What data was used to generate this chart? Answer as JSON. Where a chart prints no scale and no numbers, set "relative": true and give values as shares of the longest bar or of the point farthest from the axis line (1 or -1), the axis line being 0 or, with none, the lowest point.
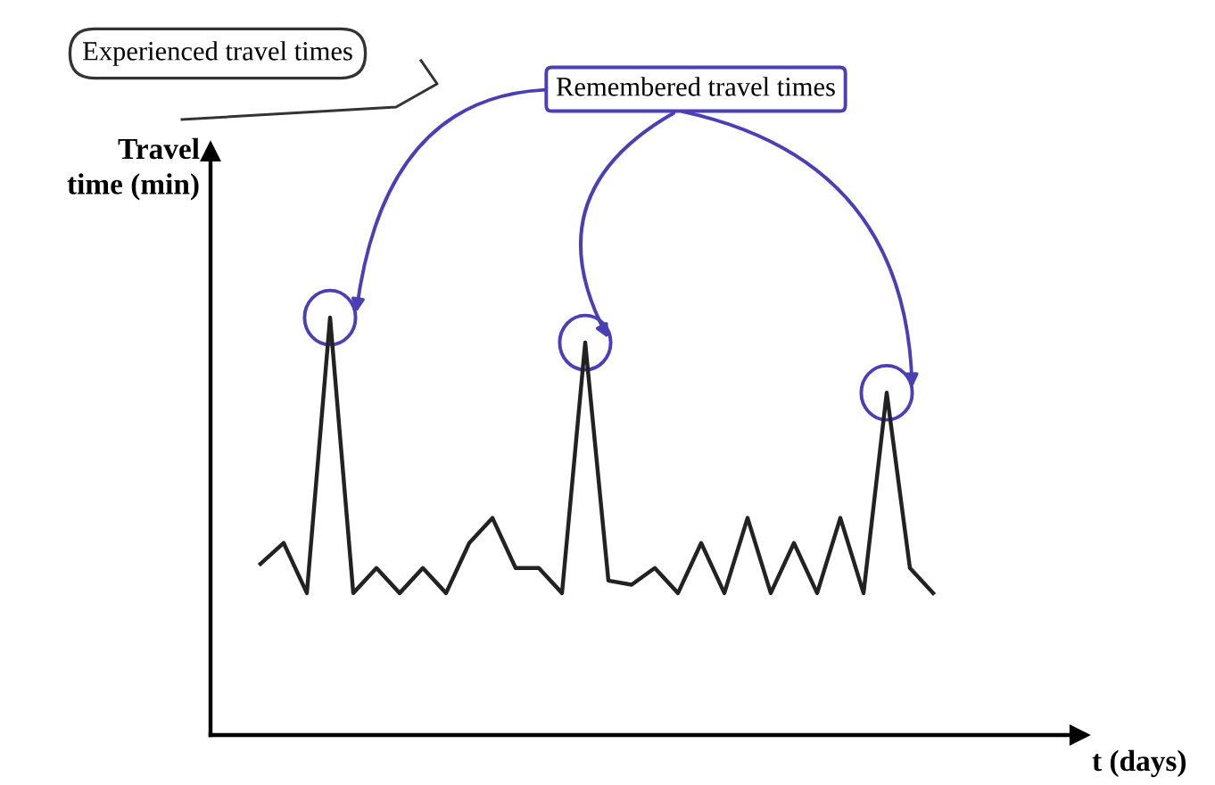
{
  "chart_data": {
    "type": "line",
    "relative": true,
    "xlabel": "t (days)",
    "ylabel": "Travel\ntime (min)",
    "categories": [
      null,
      null,
      null,
      null,
      null,
      null,
      null,
      null,
      null,
      null,
      null,
      null,
      null,
      null,
      null,
      null,
      null,
      null,
      null,
      null,
      null,
      null,
      null,
      null,
      null,
      null,
      null,
      null,
      null,
      null
    ],
    "series": [
      {
        "color": "#222222",
        "values": [
          0.41,
          0.46,
          0.34,
          1.0,
          0.34,
          0.4,
          0.34,
          0.4,
          0.34,
          0.46,
          0.52,
          0.4,
          0.4,
          0.34,
          0.94,
          0.37,
          0.36,
          0.4,
          0.34,
          0.46,
          0.34,
          0.52,
          0.34,
          0.46,
          0.34,
          0.52,
          0.34,
          0.82,
          0.4,
          0.34
        ]
      }
    ],
    "annotations": [
      "Experienced travel times",
      "Remembered travel times"
    ],
    "grid": false,
    "legend": false,
    "marker": "none",
    "line_style": "solid"
  }
}
